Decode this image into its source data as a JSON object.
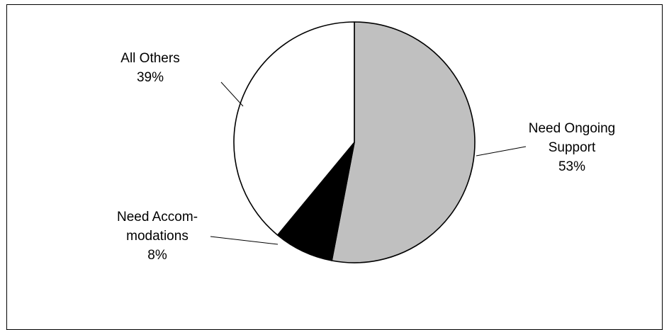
{
  "chart_data": {
    "type": "pie",
    "start_angle_deg": 0,
    "direction": "clockwise",
    "slices": [
      {
        "label_lines": [
          "Need Ongoing",
          "Support"
        ],
        "percent_label": "53%",
        "value": 53,
        "color": "#c0c0c0"
      },
      {
        "label_lines": [
          "Need Accom-",
          "modations"
        ],
        "percent_label": "8%",
        "value": 8,
        "color": "#000000"
      },
      {
        "label_lines": [
          "All Others"
        ],
        "percent_label": "39%",
        "value": 39,
        "color": "#ffffff"
      }
    ],
    "outline_color": "#000000",
    "legend": "none"
  }
}
